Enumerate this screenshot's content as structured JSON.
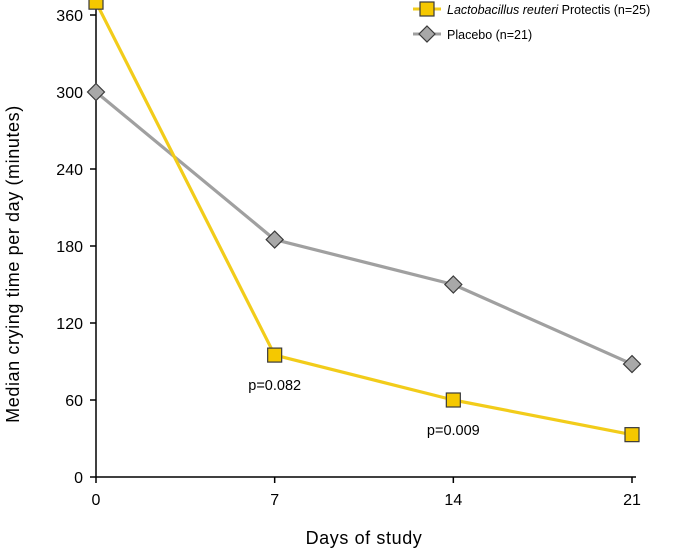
{
  "chart_data": {
    "type": "line",
    "xlabel": "Days of study",
    "ylabel": "Median crying time per day (minutes)",
    "x": [
      0,
      7,
      14,
      21
    ],
    "x_ticks": [
      "0",
      "7",
      "14",
      "21"
    ],
    "y_ticks": [
      "0",
      "60",
      "120",
      "180",
      "240",
      "300",
      "360"
    ],
    "xlim": [
      0,
      21
    ],
    "ylim": [
      0,
      360
    ],
    "grid": false,
    "legend_position": "top-right",
    "series": [
      {
        "name_italic": "Lactobacillus reuteri",
        "name_rest": " Protectis (n=25)",
        "values": [
          370,
          95,
          60,
          33
        ],
        "color": "#f5c800",
        "line_color": "#f2cc1a",
        "marker": "square"
      },
      {
        "name": "Placebo (n=21)",
        "values": [
          300,
          185,
          150,
          88
        ],
        "color": "#a8a8a8",
        "line_color": "#a0a0a0",
        "marker": "diamond"
      }
    ],
    "annotations": [
      {
        "text": "p=0.082",
        "x": 7,
        "y": 95
      },
      {
        "text": "p=0.009",
        "x": 14,
        "y": 60
      }
    ]
  }
}
